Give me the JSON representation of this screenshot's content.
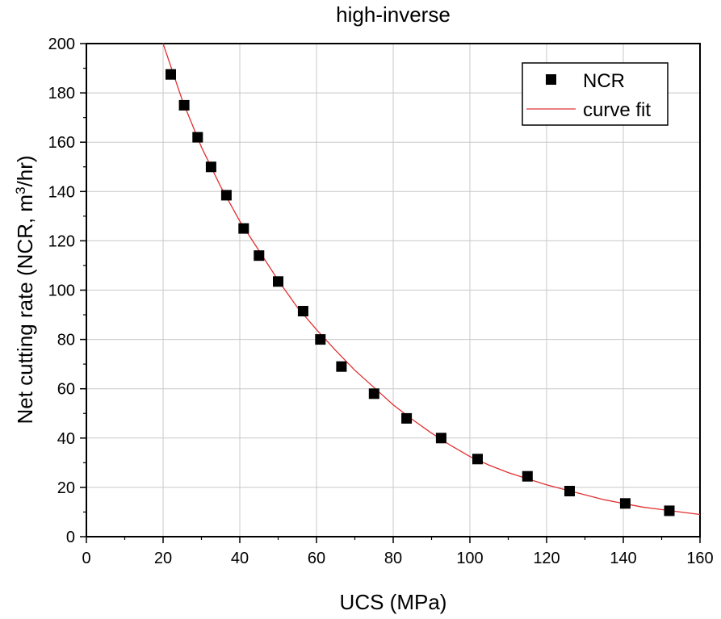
{
  "chart_data": {
    "type": "scatter",
    "title": "high-inverse",
    "xlabel": "UCS (MPa)",
    "ylabel": {
      "prefix": "Net cutting rate (NCR, m",
      "sup": "3",
      "suffix": "/hr)"
    },
    "xlim": [
      0,
      160
    ],
    "ylim": [
      0,
      200
    ],
    "x_ticks": [
      0,
      20,
      40,
      60,
      80,
      100,
      120,
      140,
      160
    ],
    "y_ticks": [
      0,
      20,
      40,
      60,
      80,
      100,
      120,
      140,
      160,
      180,
      200
    ],
    "grid": true,
    "legend_position": "top-right",
    "series": [
      {
        "name": "NCR",
        "kind": "scatter",
        "marker": "square",
        "color": "#000000",
        "x": [
          22,
          25.5,
          29,
          32.5,
          36.5,
          41,
          45,
          50,
          56.5,
          61,
          66.5,
          75,
          83.5,
          92.5,
          102,
          115,
          126,
          140.5,
          152
        ],
        "y": [
          187.5,
          175,
          162,
          150,
          138.5,
          125,
          114,
          103.5,
          91.5,
          80,
          69,
          58,
          48,
          40,
          31.5,
          24.5,
          18.5,
          13.5,
          10.5
        ]
      },
      {
        "name": "curve fit",
        "kind": "line",
        "color": "#e03030",
        "x": [
          20,
          25,
          30,
          35,
          40,
          45,
          50,
          55,
          60,
          65,
          70,
          75,
          80,
          85,
          90,
          95,
          100,
          105,
          110,
          115,
          120,
          125,
          130,
          135,
          140,
          145,
          150,
          155,
          160
        ],
        "y": [
          200,
          177,
          158,
          142,
          128,
          116,
          104,
          93,
          84,
          75.5,
          67.5,
          60.5,
          53.5,
          47.5,
          42,
          37,
          32.5,
          29,
          26,
          23.5,
          21,
          19,
          17,
          15,
          13.5,
          12,
          11,
          10,
          9
        ]
      }
    ]
  }
}
